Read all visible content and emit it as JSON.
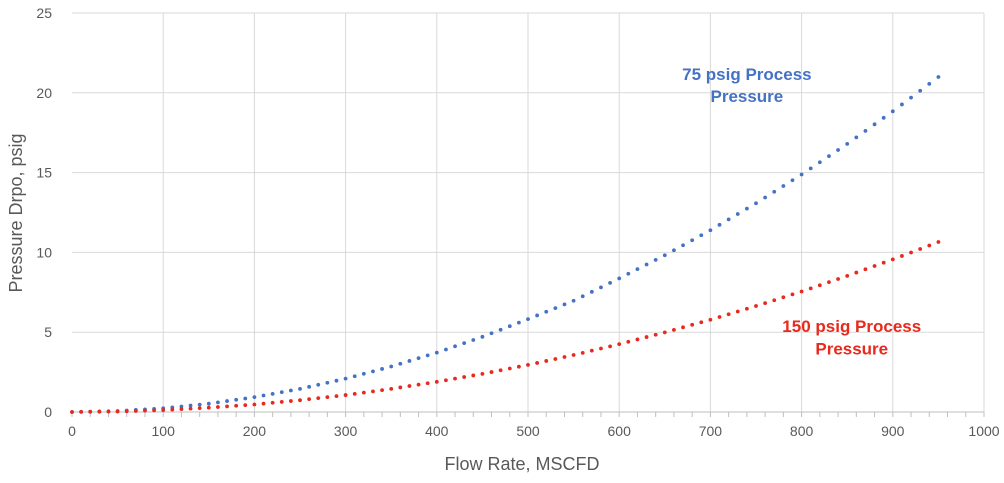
{
  "chart_data": {
    "type": "scatter",
    "title": "",
    "xlabel": "Flow Rate, MSCFD",
    "ylabel": "Pressure Drpo, psig",
    "xlim": [
      0,
      1000
    ],
    "ylim": [
      0,
      25
    ],
    "xticks": [
      "0",
      "100",
      "200",
      "300",
      "400",
      "500",
      "600",
      "700",
      "800",
      "900",
      "1000"
    ],
    "yticks": [
      "0",
      "5",
      "10",
      "15",
      "20",
      "25"
    ],
    "grid": true,
    "legend": "none",
    "x": [
      0,
      50,
      100,
      150,
      200,
      250,
      300,
      350,
      400,
      450,
      500,
      550,
      600,
      650,
      700,
      750,
      800,
      850,
      900,
      950
    ],
    "series": [
      {
        "color": "#4472C4",
        "values": [
          0,
          0.06,
          0.23,
          0.52,
          0.93,
          1.45,
          2.09,
          2.85,
          3.72,
          4.71,
          5.82,
          6.97,
          8.37,
          9.82,
          11.39,
          13.08,
          14.88,
          16.8,
          18.84,
          20.99
        ]
      },
      {
        "color": "#E8291C",
        "values": [
          0,
          0.03,
          0.12,
          0.27,
          0.47,
          0.74,
          1.06,
          1.45,
          1.89,
          2.39,
          2.95,
          3.57,
          4.25,
          4.99,
          5.78,
          6.64,
          7.55,
          8.53,
          9.56,
          10.65
        ]
      }
    ],
    "annotations": [
      {
        "lines": [
          "75 psig Process",
          "Pressure"
        ],
        "color": "#4472C4",
        "x": 740,
        "y": 20.8
      },
      {
        "lines": [
          "150 psig Process",
          "Pressure"
        ],
        "color": "#E8291C",
        "x": 855,
        "y": 5
      }
    ]
  }
}
